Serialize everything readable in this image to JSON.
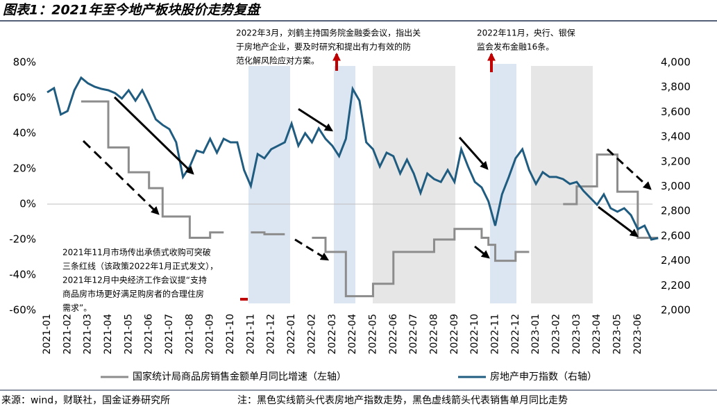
{
  "chart_data": {
    "type": "line",
    "title": "图表1：2021年至今地产板块股价走势复盘",
    "categories": [
      "2021-01",
      null,
      null,
      "2021-02",
      null,
      null,
      "2021-03",
      null,
      null,
      "2021-04",
      null,
      null,
      "2021-05",
      null,
      null,
      "2021-06",
      null,
      null,
      "2021-07",
      null,
      null,
      "2021-08",
      null,
      null,
      "2021-09",
      null,
      null,
      "2021-10",
      null,
      null,
      "2021-11",
      null,
      null,
      "2021-12",
      null,
      null,
      "2022-01",
      null,
      null,
      "2022-02",
      null,
      null,
      "2022-03",
      null,
      null,
      "2022-04",
      null,
      null,
      "2022-05",
      null,
      null,
      "2022-06",
      null,
      null,
      "2022-07",
      null,
      null,
      "2022-08",
      null,
      null,
      "2022-09",
      null,
      null,
      "2022-10",
      null,
      null,
      "2022-11",
      null,
      null,
      "2022-12",
      null,
      null,
      "2023-01",
      null,
      null,
      "2023-02",
      null,
      null,
      "2023-03",
      null,
      null,
      "2023-04",
      null,
      null,
      "2023-05",
      null,
      null,
      "2023-06",
      null,
      null,
      null
    ],
    "series": [
      {
        "name": "国家统计局商品房销售金额单月同比增速（左轴）",
        "color": "#8c8c8c",
        "step": "post",
        "values": [
          null,
          null,
          null,
          null,
          null,
          58,
          58,
          58,
          58,
          32,
          32,
          32,
          18,
          18,
          18,
          9,
          9,
          -7,
          -7,
          -7,
          -7,
          -19,
          -19,
          -19,
          -16,
          -16,
          -16,
          null,
          null,
          null,
          -16,
          -16,
          -17,
          -17,
          -17,
          -17,
          null,
          null,
          null,
          -19,
          -19,
          -27,
          -27,
          -27,
          -52,
          -52,
          -52,
          -52,
          -45,
          -45,
          -45,
          -27,
          -27,
          -27,
          -27,
          -27,
          -27,
          -20,
          -20,
          -20,
          -14,
          -14,
          -14,
          -14,
          -19,
          -23,
          -32,
          -32,
          -32,
          -27,
          -27,
          -27,
          null,
          null,
          null,
          null,
          0,
          0,
          10,
          10,
          10,
          28,
          28,
          28,
          7,
          7,
          7,
          -19,
          -19,
          -19,
          -19
        ]
      },
      {
        "name": "房地产申万指数（右轴）",
        "color": "#1f5c80",
        "axis": "y2",
        "values": [
          3759,
          3793,
          3580,
          3608,
          3776,
          3877,
          3832,
          3804,
          3787,
          3776,
          3753,
          3709,
          3776,
          3692,
          3776,
          3664,
          3541,
          3496,
          3462,
          3356,
          3076,
          3160,
          3289,
          3272,
          3384,
          3272,
          3384,
          3356,
          3356,
          3132,
          3003,
          3261,
          3227,
          3300,
          3328,
          3356,
          3507,
          3328,
          3429,
          3356,
          3468,
          3384,
          3328,
          3244,
          3384,
          3787,
          3692,
          3356,
          3300,
          3160,
          3272,
          3244,
          3104,
          3216,
          3104,
          2947,
          3104,
          3059,
          3036,
          3132,
          3036,
          3300,
          3160,
          3036,
          2992,
          2880,
          2683,
          2936,
          3076,
          3227,
          3300,
          3132,
          3020,
          3115,
          3076,
          3076,
          3059,
          3020,
          3036,
          2964,
          2908,
          2852,
          2936,
          2824,
          2796,
          2824,
          2768,
          2655,
          2683,
          2571,
          2583
        ]
      }
    ],
    "ylim": [
      -60,
      80
    ],
    "yticks": [
      {
        "value": -60,
        "label": "-60%"
      },
      {
        "value": -40,
        "label": "-40%"
      },
      {
        "value": -20,
        "label": "-20%"
      },
      {
        "value": 0,
        "label": "0%"
      },
      {
        "value": 20,
        "label": "20%"
      },
      {
        "value": 40,
        "label": "40%"
      },
      {
        "value": 60,
        "label": "60%"
      },
      {
        "value": 80,
        "label": "80%"
      }
    ],
    "y2lim": [
      2000,
      4000
    ],
    "y2ticks": [
      {
        "value": 2000,
        "label": "2,000"
      },
      {
        "value": 2200,
        "label": "2,200"
      },
      {
        "value": 2400,
        "label": "2,400"
      },
      {
        "value": 2600,
        "label": "2,600"
      },
      {
        "value": 2800,
        "label": "2,800"
      },
      {
        "value": 3000,
        "label": "3,000"
      },
      {
        "value": 3200,
        "label": "3,200"
      },
      {
        "value": 3400,
        "label": "3,400"
      },
      {
        "value": 3600,
        "label": "3,600"
      },
      {
        "value": 3800,
        "label": "3,800"
      },
      {
        "value": 4000,
        "label": "4,000"
      }
    ],
    "annotations": [
      {
        "lines": [
          "2022年3月，刘鹤主持国务院金融委会议，指出关",
          "于房地产企业，要及时研究和提出有力有效的防",
          "范化解风险应对方案。"
        ]
      },
      {
        "lines": [
          "2022年11月，央行、银保",
          "监会发布金融16条。"
        ]
      },
      {
        "lines": [
          "2021年11月市场传出承债式收购可突破",
          "三条红线（该政策2022年1月正式发文），",
          "2021年12月中央经济工作会议提“支持",
          "商品房市场更好满足购房者的合理住房",
          "需求”。"
        ]
      }
    ],
    "source": "来源：wind，财联社，国金证券研究所",
    "note": "注：黑色实线箭头代表房地产指数走势，黑色虚线箭头代表销售单月同比走势"
  }
}
